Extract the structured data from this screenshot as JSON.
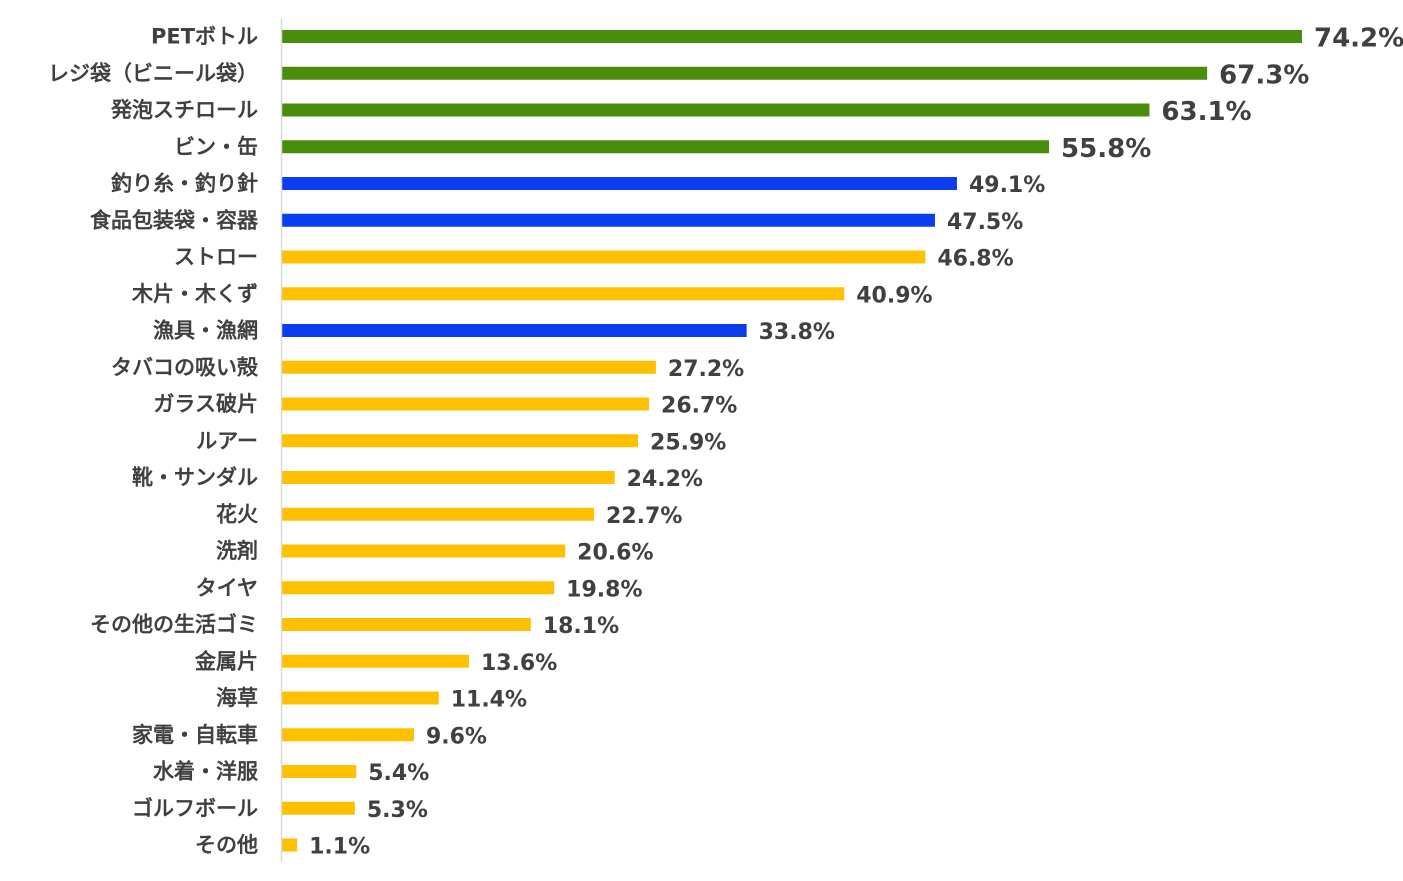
{
  "chart_data": {
    "type": "bar",
    "orientation": "horizontal",
    "title": "",
    "xlabel": "",
    "ylabel": "",
    "xlim": [
      0,
      74.2
    ],
    "grid": false,
    "legend": "none",
    "value_suffix": "%",
    "categories": [
      "PETボトル",
      "レジ袋（ビニール袋）",
      "発泡スチロール",
      "ビン・缶",
      "釣り糸・釣り針",
      "食品包装袋・容器",
      "ストロー",
      "木片・木くず",
      "漁具・漁網",
      "タバコの吸い殻",
      "ガラス破片",
      "ルアー",
      "靴・サンダル",
      "花火",
      "洗剤",
      "タイヤ",
      "その他の生活ゴミ",
      "金属片",
      "海草",
      "家電・自転車",
      "水着・洋服",
      "ゴルフボール",
      "その他"
    ],
    "values": [
      74.2,
      67.3,
      63.1,
      55.8,
      49.1,
      47.5,
      46.8,
      40.9,
      33.8,
      27.2,
      26.7,
      25.9,
      24.2,
      22.7,
      20.6,
      19.8,
      18.1,
      13.6,
      11.4,
      9.6,
      5.4,
      5.3,
      1.1
    ],
    "labels": [
      "74.2%",
      "67.3%",
      "63.1%",
      "55.8%",
      "49.1%",
      "47.5%",
      "46.8%",
      "40.9%",
      "33.8%",
      "27.2%",
      "26.7%",
      "25.9%",
      "24.2%",
      "22.7%",
      "20.6%",
      "19.8%",
      "18.1%",
      "13.6%",
      "11.4%",
      "9.6%",
      "5.4%",
      "5.3%",
      "1.1%"
    ],
    "bar_colors": [
      "#4a8c0c",
      "#4a8c0c",
      "#4a8c0c",
      "#4a8c0c",
      "#0a3cf0",
      "#0a3cf0",
      "#ffc000",
      "#ffc000",
      "#0a3cf0",
      "#ffc000",
      "#ffc000",
      "#ffc000",
      "#ffc000",
      "#ffc000",
      "#ffc000",
      "#ffc000",
      "#ffc000",
      "#ffc000",
      "#ffc000",
      "#ffc000",
      "#ffc000",
      "#ffc000",
      "#ffc000"
    ],
    "axis_color": "#d9d9d9",
    "text_color": "#404040"
  }
}
